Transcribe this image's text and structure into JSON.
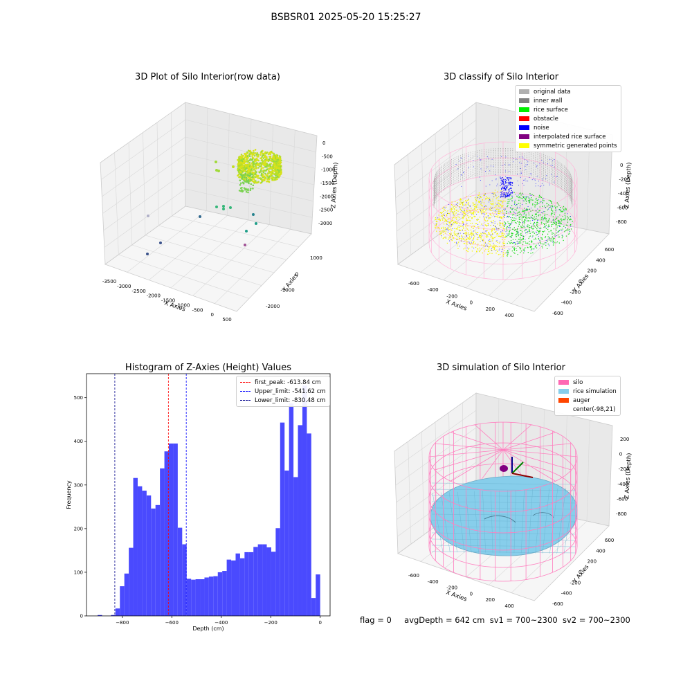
{
  "suptitle": "BSBSR01 2025-05-20 15:25:27",
  "footer": {
    "flag": "flag = 0",
    "avg_depth": "avgDepth = 642 cm",
    "sv1": "sv1 = 700~2300",
    "sv2": "sv2 = 700~2300"
  },
  "chart_data": [
    {
      "type": "scatter",
      "projection": "3d",
      "title": "3D Plot of Silo Interior(row data)",
      "xlabel": "X Axies",
      "ylabel": "Y Axies",
      "zlabel": "Z Axies (Depth)",
      "xticks": [
        "-3500",
        "-3000",
        "-2500",
        "-2000",
        "-1500",
        "-1000",
        "-500",
        "0",
        "500"
      ],
      "yticks": [
        "1000",
        "0",
        "-1000",
        "-2000"
      ],
      "zticks": [
        "0",
        "-500",
        "-1000",
        "-1500",
        "-2000",
        "-2500",
        "-3000"
      ],
      "colormap": "viridis"
    },
    {
      "type": "scatter",
      "projection": "3d",
      "title": "3D classify of Silo Interior",
      "xlabel": "X Axies",
      "ylabel": "Y Axies",
      "zlabel": "Z Axies (Depth)",
      "xticks": [
        "-600",
        "-400",
        "-200",
        "0",
        "200",
        "400"
      ],
      "yticks": [
        "600",
        "400",
        "200",
        "0",
        "-200",
        "-400",
        "-600"
      ],
      "zticks": [
        "0",
        "-200",
        "-400",
        "-600",
        "-800"
      ],
      "legend_position": "top-right",
      "legend": [
        {
          "label": "original data",
          "color": "#b0b0b0"
        },
        {
          "label": "inner wall",
          "color": "#808080"
        },
        {
          "label": "rice surface",
          "color": "#00ee00"
        },
        {
          "label": "obstacle",
          "color": "#ff0000"
        },
        {
          "label": "noise",
          "color": "#0000ff"
        },
        {
          "label": "interpolated rice surface",
          "color": "#800080"
        },
        {
          "label": "symmetric generated points",
          "color": "#ffff00"
        }
      ]
    },
    {
      "type": "bar",
      "title": "Histogram of Z-Axies (Height) Values",
      "xlabel": "Depth (cm)",
      "ylabel": "Frequency",
      "xlim": [
        -945,
        40
      ],
      "ylim": [
        0,
        555
      ],
      "xticks": [
        -800,
        -600,
        -400,
        -200,
        0
      ],
      "yticks": [
        0,
        100,
        200,
        300,
        400,
        500
      ],
      "bar_color": "#4a4afe",
      "bin_width": 18,
      "bins": [
        {
          "x": -900,
          "v": 2
        },
        {
          "x": -882,
          "v": 0
        },
        {
          "x": -864,
          "v": 0
        },
        {
          "x": -846,
          "v": 2
        },
        {
          "x": -828,
          "v": 17
        },
        {
          "x": -810,
          "v": 68
        },
        {
          "x": -792,
          "v": 97
        },
        {
          "x": -774,
          "v": 156
        },
        {
          "x": -756,
          "v": 316
        },
        {
          "x": -738,
          "v": 297
        },
        {
          "x": -720,
          "v": 287
        },
        {
          "x": -702,
          "v": 276
        },
        {
          "x": -684,
          "v": 246
        },
        {
          "x": -666,
          "v": 254
        },
        {
          "x": -648,
          "v": 338
        },
        {
          "x": -630,
          "v": 377
        },
        {
          "x": -612,
          "v": 395
        },
        {
          "x": -594,
          "v": 395
        },
        {
          "x": -576,
          "v": 202
        },
        {
          "x": -558,
          "v": 164
        },
        {
          "x": -540,
          "v": 85
        },
        {
          "x": -522,
          "v": 83
        },
        {
          "x": -504,
          "v": 84
        },
        {
          "x": -486,
          "v": 84
        },
        {
          "x": -468,
          "v": 88
        },
        {
          "x": -450,
          "v": 90
        },
        {
          "x": -432,
          "v": 91
        },
        {
          "x": -414,
          "v": 100
        },
        {
          "x": -396,
          "v": 103
        },
        {
          "x": -378,
          "v": 129
        },
        {
          "x": -360,
          "v": 127
        },
        {
          "x": -342,
          "v": 143
        },
        {
          "x": -324,
          "v": 132
        },
        {
          "x": -306,
          "v": 146
        },
        {
          "x": -288,
          "v": 146
        },
        {
          "x": -270,
          "v": 158
        },
        {
          "x": -252,
          "v": 164
        },
        {
          "x": -234,
          "v": 164
        },
        {
          "x": -216,
          "v": 157
        },
        {
          "x": -198,
          "v": 147
        },
        {
          "x": -180,
          "v": 201
        },
        {
          "x": -162,
          "v": 443
        },
        {
          "x": -144,
          "v": 333
        },
        {
          "x": -126,
          "v": 487
        },
        {
          "x": -108,
          "v": 318
        },
        {
          "x": -90,
          "v": 437
        },
        {
          "x": -72,
          "v": 528
        },
        {
          "x": -54,
          "v": 418
        },
        {
          "x": -36,
          "v": 41
        },
        {
          "x": -18,
          "v": 95
        }
      ],
      "vlines": [
        {
          "label": "first_peak: -613.84 cm",
          "x": -613.84,
          "color": "#ff0000"
        },
        {
          "label": "Upper_limit: -541.62 cm",
          "x": -541.62,
          "color": "#0000ff"
        },
        {
          "label": "Lower_limit: -830.48 cm",
          "x": -830.48,
          "color": "#00008b"
        }
      ],
      "legend_position": "top-right"
    },
    {
      "type": "scatter",
      "projection": "3d",
      "title": "3D simulation of Silo Interior",
      "xlabel": "X Axies",
      "ylabel": "Y Axies",
      "zlabel": "Z Axies (Depth)",
      "xticks": [
        "-600",
        "-400",
        "-200",
        "0",
        "200",
        "400"
      ],
      "yticks": [
        "600",
        "400",
        "200",
        "0",
        "-200",
        "-400",
        "-600"
      ],
      "zticks": [
        "200",
        "0",
        "-200",
        "-400",
        "-600",
        "-800"
      ],
      "legend_position": "top-right",
      "legend": [
        {
          "label": "silo",
          "color": "#ff69b4"
        },
        {
          "label": "rice simulation",
          "color": "#87ceeb"
        },
        {
          "label": "auger",
          "color": "#ff4500"
        },
        {
          "label": "center(-98,21)",
          "color": "#ffffff"
        }
      ]
    }
  ]
}
